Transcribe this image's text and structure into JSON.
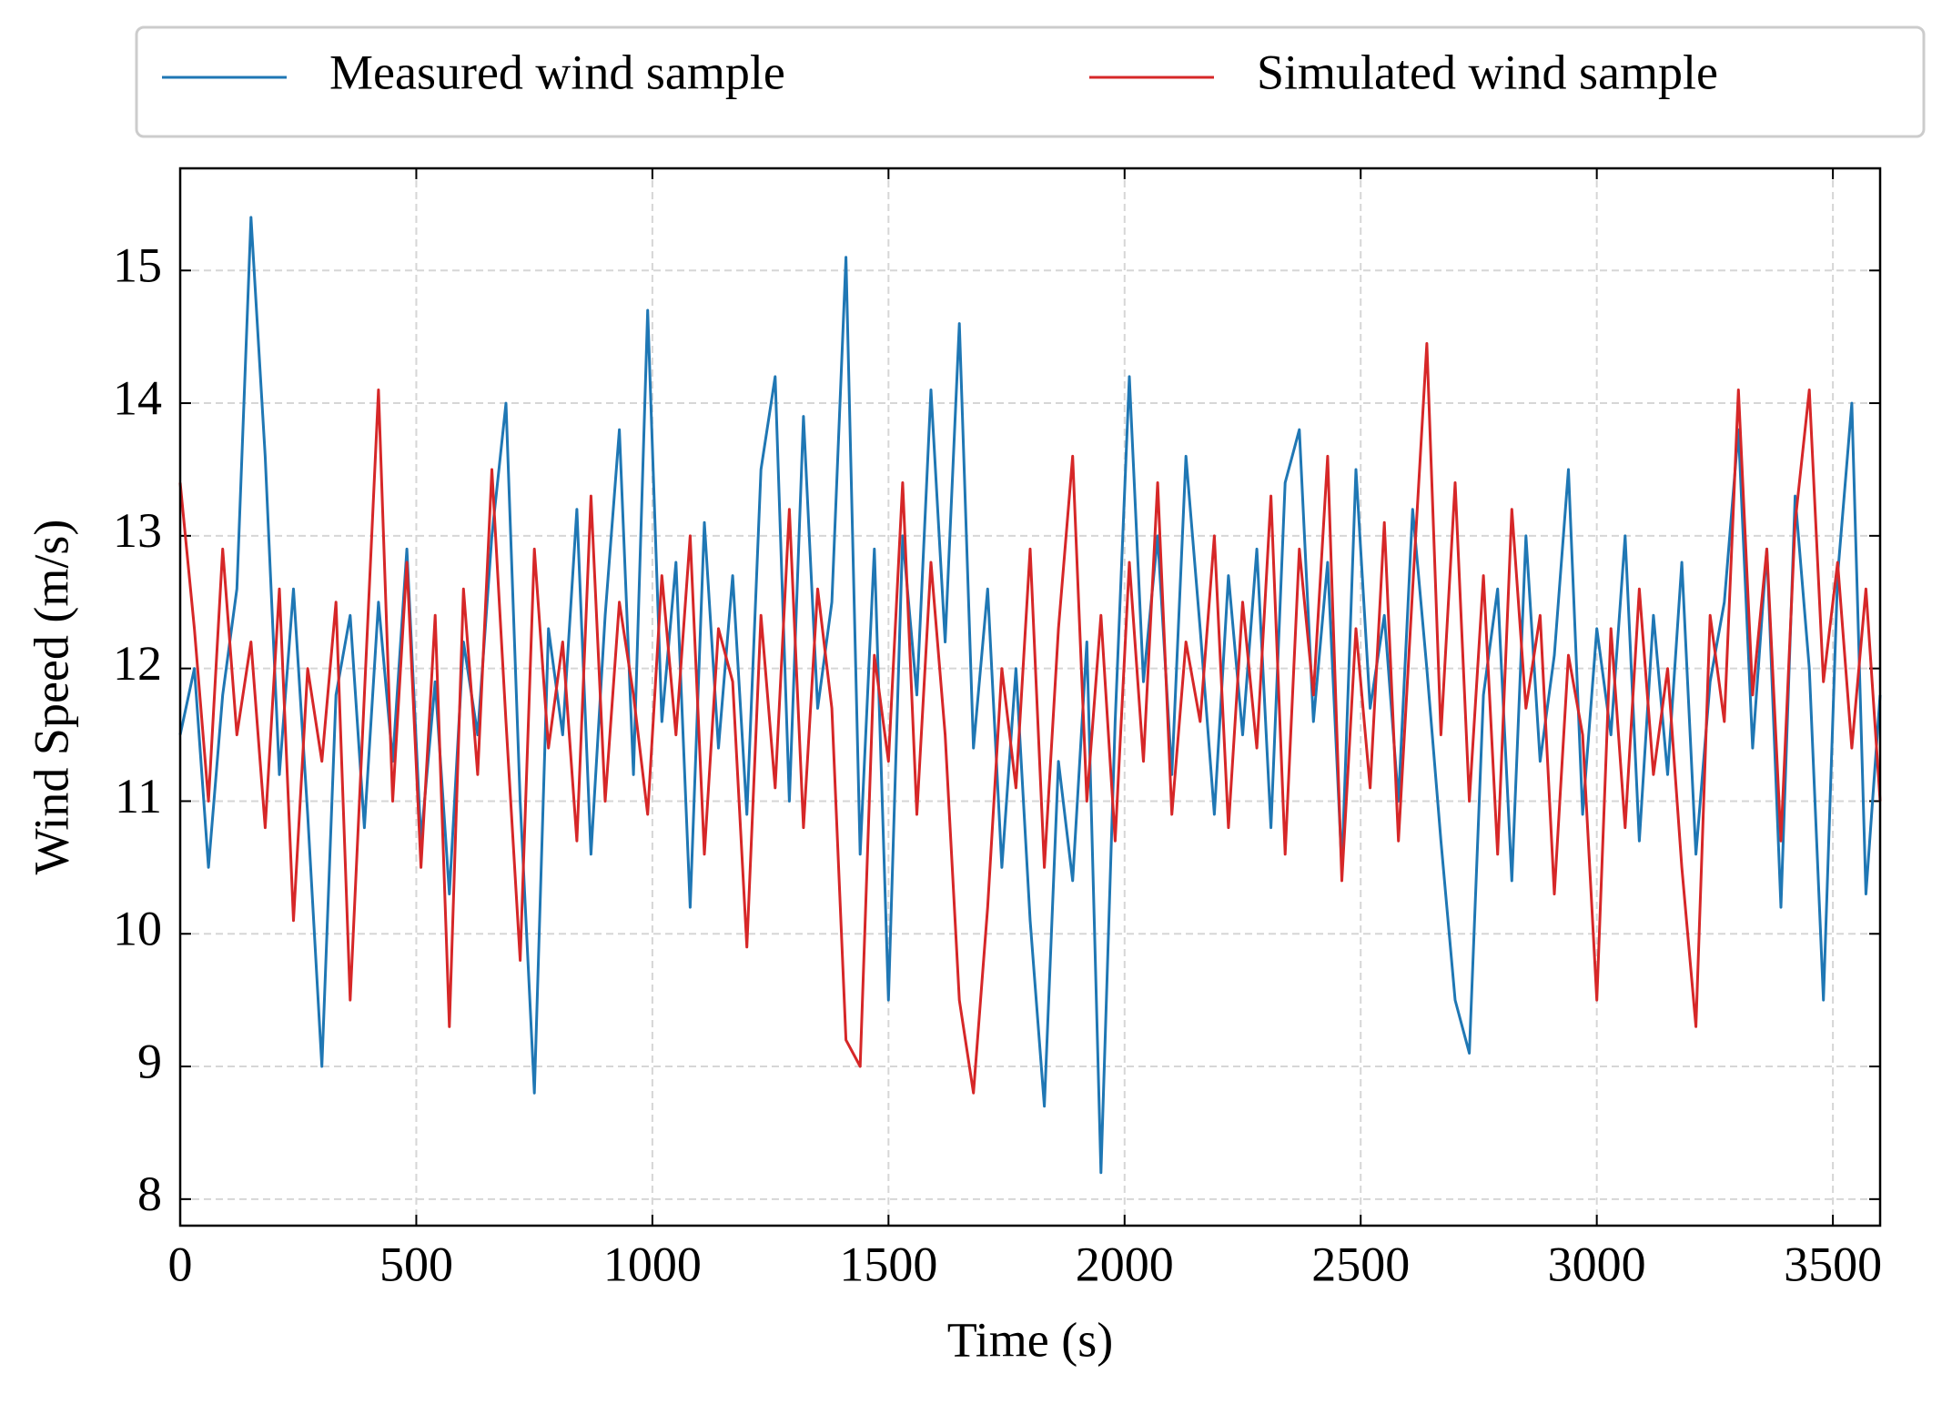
{
  "chart_data": {
    "type": "line",
    "xlabel": "Time (s)",
    "ylabel": "Wind Speed (m/s)",
    "xlim": [
      0,
      3600
    ],
    "ylim": [
      7.8,
      15.77
    ],
    "xticks": [
      0,
      500,
      1000,
      1500,
      2000,
      2500,
      3000,
      3500
    ],
    "yticks": [
      8,
      9,
      10,
      11,
      12,
      13,
      14,
      15
    ],
    "grid": true,
    "legend": "top",
    "x": [
      0,
      30,
      60,
      90,
      120,
      150,
      180,
      210,
      240,
      270,
      300,
      330,
      360,
      390,
      420,
      450,
      480,
      510,
      540,
      570,
      600,
      630,
      660,
      690,
      720,
      750,
      780,
      810,
      840,
      870,
      900,
      930,
      960,
      990,
      1020,
      1050,
      1080,
      1110,
      1140,
      1170,
      1200,
      1230,
      1260,
      1290,
      1320,
      1350,
      1380,
      1410,
      1440,
      1470,
      1500,
      1530,
      1560,
      1590,
      1620,
      1650,
      1680,
      1710,
      1740,
      1770,
      1800,
      1830,
      1860,
      1890,
      1920,
      1950,
      1980,
      2010,
      2040,
      2070,
      2100,
      2130,
      2160,
      2190,
      2220,
      2250,
      2280,
      2310,
      2340,
      2370,
      2400,
      2430,
      2460,
      2490,
      2520,
      2550,
      2580,
      2610,
      2640,
      2670,
      2700,
      2730,
      2760,
      2790,
      2820,
      2850,
      2880,
      2910,
      2940,
      2970,
      3000,
      3030,
      3060,
      3090,
      3120,
      3150,
      3180,
      3210,
      3240,
      3270,
      3300,
      3330,
      3360,
      3390,
      3420,
      3450,
      3480,
      3510,
      3540,
      3570,
      3600
    ],
    "series": [
      {
        "name": "Measured wind sample",
        "color": "#1f77b4",
        "values": [
          11.5,
          12.0,
          10.5,
          11.8,
          12.6,
          15.4,
          13.6,
          11.2,
          12.6,
          10.9,
          9.0,
          11.8,
          12.4,
          10.8,
          12.5,
          11.3,
          12.9,
          10.7,
          11.9,
          10.3,
          12.2,
          11.5,
          13.0,
          14.0,
          11.0,
          8.8,
          12.3,
          11.5,
          13.2,
          10.6,
          12.4,
          13.8,
          11.2,
          14.7,
          11.6,
          12.8,
          10.2,
          13.1,
          11.4,
          12.7,
          10.9,
          13.5,
          14.2,
          11.0,
          13.9,
          11.7,
          12.5,
          15.1,
          10.6,
          12.9,
          9.5,
          13.0,
          11.8,
          14.1,
          12.2,
          14.6,
          11.4,
          12.6,
          10.5,
          12.0,
          10.1,
          8.7,
          11.3,
          10.4,
          12.2,
          8.2,
          11.6,
          14.2,
          11.9,
          13.0,
          11.2,
          13.6,
          12.3,
          10.9,
          12.7,
          11.5,
          12.9,
          10.8,
          13.4,
          13.8,
          11.6,
          12.8,
          10.5,
          13.5,
          11.7,
          12.4,
          11.0,
          13.2,
          12.0,
          10.7,
          9.5,
          9.1,
          11.8,
          12.6,
          10.4,
          13.0,
          11.3,
          12.1,
          13.5,
          10.9,
          12.3,
          11.5,
          13.0,
          10.7,
          12.4,
          11.2,
          12.8,
          10.6,
          11.9,
          12.5,
          13.8,
          11.4,
          12.9,
          10.2,
          13.3,
          12.0,
          9.5,
          12.7,
          14.0,
          10.3,
          11.8
        ]
      },
      {
        "name": "Simulated wind sample",
        "color": "#d62728",
        "values": [
          13.4,
          12.3,
          11.0,
          12.9,
          11.5,
          12.2,
          10.8,
          12.6,
          10.1,
          12.0,
          11.3,
          12.5,
          9.5,
          11.8,
          14.1,
          11.0,
          12.8,
          10.5,
          12.4,
          9.3,
          12.6,
          11.2,
          13.5,
          11.6,
          9.8,
          12.9,
          11.4,
          12.2,
          10.7,
          13.3,
          11.0,
          12.5,
          11.8,
          10.9,
          12.7,
          11.5,
          13.0,
          10.6,
          12.3,
          11.9,
          9.9,
          12.4,
          11.1,
          13.2,
          10.8,
          12.6,
          11.7,
          9.2,
          9.0,
          12.1,
          11.3,
          13.4,
          10.9,
          12.8,
          11.5,
          9.5,
          8.8,
          10.2,
          12.0,
          11.1,
          12.9,
          10.5,
          12.3,
          13.6,
          11.0,
          12.4,
          10.7,
          12.8,
          11.3,
          13.4,
          10.9,
          12.2,
          11.6,
          13.0,
          10.8,
          12.5,
          11.4,
          13.3,
          10.6,
          12.9,
          11.8,
          13.6,
          10.4,
          12.3,
          11.1,
          13.1,
          10.7,
          12.6,
          14.45,
          11.5,
          13.4,
          11.0,
          12.7,
          10.6,
          13.2,
          11.7,
          12.4,
          10.3,
          12.1,
          11.5,
          9.5,
          12.3,
          10.8,
          12.6,
          11.2,
          12.0,
          10.5,
          9.3,
          12.4,
          11.6,
          14.1,
          11.8,
          12.9,
          10.7,
          13.1,
          14.1,
          11.9,
          12.8,
          11.4,
          12.6,
          11.0
        ]
      }
    ]
  }
}
